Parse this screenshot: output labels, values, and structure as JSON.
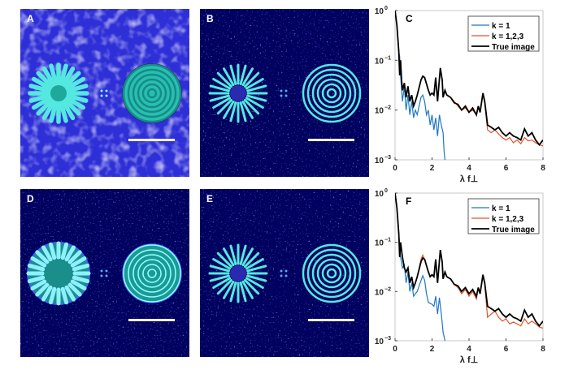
{
  "panels": [
    {
      "label": "A",
      "style": "noisy"
    },
    {
      "label": "B",
      "style": "dark"
    },
    {
      "label": "D",
      "style": "filled"
    },
    {
      "label": "E",
      "style": "dark"
    }
  ],
  "colors": {
    "k1": "#1f77c4",
    "k123": "#e3542a",
    "true": "#000000",
    "teal": "#2fd8c8",
    "navy": "#000066"
  },
  "chart_data": [
    {
      "type": "line",
      "panel_label": "C",
      "xlabel": "λ f⊥",
      "ylabel": "",
      "xlim": [
        0,
        8
      ],
      "ylim": [
        0.001,
        1
      ],
      "yscale": "log",
      "grid": false,
      "legend_position": "top-right",
      "xticks": [
        "0",
        "2",
        "4",
        "6",
        "8"
      ],
      "yticks": [
        {
          "base": "10",
          "exp": "0"
        },
        {
          "base": "10",
          "exp": "-1"
        },
        {
          "base": "10",
          "exp": "-2"
        },
        {
          "base": "10",
          "exp": "-3"
        }
      ],
      "series": [
        {
          "name": "k = 1",
          "color": "#1f77c4",
          "x": [
            0,
            0.1,
            0.2,
            0.25,
            0.3,
            0.4,
            0.5,
            0.6,
            0.7,
            0.8,
            0.9,
            1.0,
            1.1,
            1.2,
            1.3,
            1.4,
            1.5,
            1.6,
            1.7,
            1.8,
            1.9,
            2.0,
            2.1,
            2.2,
            2.3,
            2.4,
            2.5,
            2.6,
            2.65,
            2.7
          ],
          "y": [
            1,
            0.5,
            0.15,
            0.12,
            0.05,
            0.015,
            0.03,
            0.01,
            0.02,
            0.008,
            0.015,
            0.007,
            0.01,
            0.008,
            0.012,
            0.018,
            0.02,
            0.015,
            0.008,
            0.01,
            0.005,
            0.008,
            0.004,
            0.007,
            0.003,
            0.008,
            0.005,
            0.0035,
            0.0015,
            0.001
          ]
        },
        {
          "name": "k = 1,2,3",
          "color": "#e3542a",
          "x": [
            0,
            0.1,
            0.2,
            0.25,
            0.3,
            0.35,
            0.4,
            0.5,
            0.6,
            0.7,
            0.8,
            0.9,
            1.0,
            1.1,
            1.2,
            1.4,
            1.5,
            1.6,
            1.8,
            1.9,
            2.0,
            2.1,
            2.2,
            2.3,
            2.45,
            2.55,
            2.6,
            2.7,
            2.8,
            3.0,
            3.2,
            3.4,
            3.6,
            3.8,
            4.0,
            4.2,
            4.4,
            4.5,
            4.6,
            4.75,
            4.85,
            5.0,
            5.2,
            5.4,
            5.6,
            5.8,
            6.0,
            6.2,
            6.4,
            6.6,
            6.8,
            7.0,
            7.2,
            7.4,
            7.6,
            7.8,
            8.0
          ],
          "y": [
            1,
            0.5,
            0.15,
            0.05,
            0.1,
            0.04,
            0.025,
            0.035,
            0.018,
            0.03,
            0.015,
            0.02,
            0.012,
            0.015,
            0.02,
            0.04,
            0.048,
            0.045,
            0.025,
            0.02,
            0.022,
            0.02,
            0.045,
            0.015,
            0.07,
            0.04,
            0.018,
            0.025,
            0.02,
            0.018,
            0.015,
            0.012,
            0.01,
            0.011,
            0.009,
            0.01,
            0.008,
            0.012,
            0.009,
            0.02,
            0.014,
            0.004,
            0.0035,
            0.004,
            0.0033,
            0.0028,
            0.0025,
            0.0028,
            0.0022,
            0.0025,
            0.0021,
            0.0028,
            0.0024,
            0.0025,
            0.0022,
            0.002,
            0.0019
          ]
        },
        {
          "name": "True image",
          "color": "#000000",
          "x": [
            0,
            0.1,
            0.2,
            0.25,
            0.3,
            0.35,
            0.4,
            0.5,
            0.6,
            0.7,
            0.8,
            0.9,
            1.0,
            1.1,
            1.2,
            1.4,
            1.5,
            1.6,
            1.8,
            1.9,
            2.0,
            2.1,
            2.2,
            2.3,
            2.45,
            2.55,
            2.6,
            2.7,
            2.8,
            3.0,
            3.2,
            3.4,
            3.6,
            3.8,
            4.0,
            4.2,
            4.4,
            4.5,
            4.6,
            4.75,
            4.85,
            5.0,
            5.2,
            5.4,
            5.6,
            5.8,
            6.0,
            6.2,
            6.4,
            6.6,
            6.8,
            7.0,
            7.2,
            7.4,
            7.6,
            7.8,
            8.0
          ],
          "y": [
            1,
            0.5,
            0.15,
            0.05,
            0.1,
            0.04,
            0.025,
            0.035,
            0.018,
            0.03,
            0.015,
            0.02,
            0.012,
            0.015,
            0.02,
            0.04,
            0.048,
            0.045,
            0.025,
            0.02,
            0.022,
            0.02,
            0.045,
            0.015,
            0.07,
            0.04,
            0.018,
            0.025,
            0.02,
            0.018,
            0.014,
            0.013,
            0.01,
            0.012,
            0.009,
            0.011,
            0.008,
            0.012,
            0.009,
            0.022,
            0.015,
            0.005,
            0.0045,
            0.004,
            0.0045,
            0.0035,
            0.003,
            0.0035,
            0.003,
            0.0028,
            0.0025,
            0.0042,
            0.003,
            0.0035,
            0.0025,
            0.002,
            0.0025
          ]
        }
      ]
    },
    {
      "type": "line",
      "panel_label": "F",
      "xlabel": "λ f⊥",
      "ylabel": "",
      "xlim": [
        0,
        8
      ],
      "ylim": [
        0.001,
        1
      ],
      "yscale": "log",
      "grid": false,
      "legend_position": "top-right",
      "xticks": [
        "0",
        "2",
        "4",
        "6",
        "8"
      ],
      "yticks": [
        {
          "base": "10",
          "exp": "0"
        },
        {
          "base": "10",
          "exp": "-1"
        },
        {
          "base": "10",
          "exp": "-2"
        },
        {
          "base": "10",
          "exp": "-3"
        }
      ],
      "series": [
        {
          "name": "k = 1",
          "color": "#1f77c4",
          "x": [
            0,
            0.1,
            0.2,
            0.3,
            0.4,
            0.5,
            0.6,
            0.7,
            0.8,
            0.9,
            1.0,
            1.1,
            1.2,
            1.3,
            1.5,
            1.6,
            1.7,
            1.8,
            2.0,
            2.1,
            2.2,
            2.3,
            2.4,
            2.5,
            2.6,
            2.7
          ],
          "y": [
            1,
            0.5,
            0.15,
            0.05,
            0.03,
            0.035,
            0.015,
            0.025,
            0.01,
            0.015,
            0.008,
            0.009,
            0.01,
            0.013,
            0.021,
            0.017,
            0.009,
            0.006,
            0.0055,
            0.005,
            0.008,
            0.0035,
            0.0075,
            0.0035,
            0.0015,
            0.001
          ]
        },
        {
          "name": "k = 1,2,3",
          "color": "#e3542a",
          "x": [
            0,
            0.1,
            0.2,
            0.25,
            0.3,
            0.4,
            0.5,
            0.6,
            0.7,
            0.8,
            0.9,
            1.0,
            1.1,
            1.2,
            1.4,
            1.5,
            1.6,
            1.8,
            1.9,
            2.0,
            2.1,
            2.2,
            2.3,
            2.45,
            2.55,
            2.6,
            2.7,
            2.8,
            3.0,
            3.2,
            3.4,
            3.6,
            3.8,
            4.0,
            4.2,
            4.4,
            4.5,
            4.6,
            4.75,
            4.85,
            5.0,
            5.2,
            5.4,
            5.6,
            5.8,
            6.0,
            6.2,
            6.4,
            6.6,
            6.8,
            7.0,
            7.2,
            7.4,
            7.6,
            7.8,
            8.0
          ],
          "y": [
            1,
            0.5,
            0.15,
            0.05,
            0.1,
            0.05,
            0.03,
            0.025,
            0.03,
            0.015,
            0.02,
            0.012,
            0.015,
            0.02,
            0.045,
            0.055,
            0.045,
            0.025,
            0.02,
            0.022,
            0.02,
            0.045,
            0.015,
            0.07,
            0.04,
            0.018,
            0.025,
            0.02,
            0.018,
            0.014,
            0.012,
            0.009,
            0.011,
            0.008,
            0.01,
            0.007,
            0.012,
            0.009,
            0.02,
            0.014,
            0.003,
            0.0035,
            0.004,
            0.003,
            0.0025,
            0.0028,
            0.0022,
            0.0024,
            0.0022,
            0.002,
            0.0028,
            0.0022,
            0.0025,
            0.0022,
            0.0019,
            0.0018
          ]
        },
        {
          "name": "True image",
          "color": "#000000",
          "x": [
            0,
            0.1,
            0.2,
            0.25,
            0.3,
            0.4,
            0.5,
            0.6,
            0.7,
            0.8,
            0.9,
            1.0,
            1.1,
            1.2,
            1.4,
            1.5,
            1.6,
            1.8,
            1.9,
            2.0,
            2.1,
            2.2,
            2.3,
            2.45,
            2.55,
            2.6,
            2.7,
            2.8,
            3.0,
            3.2,
            3.4,
            3.6,
            3.8,
            4.0,
            4.2,
            4.4,
            4.5,
            4.6,
            4.75,
            4.85,
            5.0,
            5.2,
            5.4,
            5.6,
            5.8,
            6.0,
            6.2,
            6.4,
            6.6,
            6.8,
            7.0,
            7.2,
            7.4,
            7.6,
            7.8,
            8.0
          ],
          "y": [
            1,
            0.5,
            0.15,
            0.05,
            0.1,
            0.05,
            0.03,
            0.025,
            0.03,
            0.015,
            0.02,
            0.012,
            0.015,
            0.02,
            0.04,
            0.048,
            0.045,
            0.025,
            0.02,
            0.022,
            0.02,
            0.045,
            0.015,
            0.07,
            0.04,
            0.018,
            0.025,
            0.02,
            0.018,
            0.014,
            0.013,
            0.01,
            0.012,
            0.009,
            0.011,
            0.008,
            0.012,
            0.009,
            0.022,
            0.015,
            0.005,
            0.0045,
            0.004,
            0.0045,
            0.0035,
            0.003,
            0.0035,
            0.003,
            0.0028,
            0.0025,
            0.0042,
            0.003,
            0.0035,
            0.0025,
            0.002,
            0.0025
          ]
        }
      ]
    }
  ]
}
